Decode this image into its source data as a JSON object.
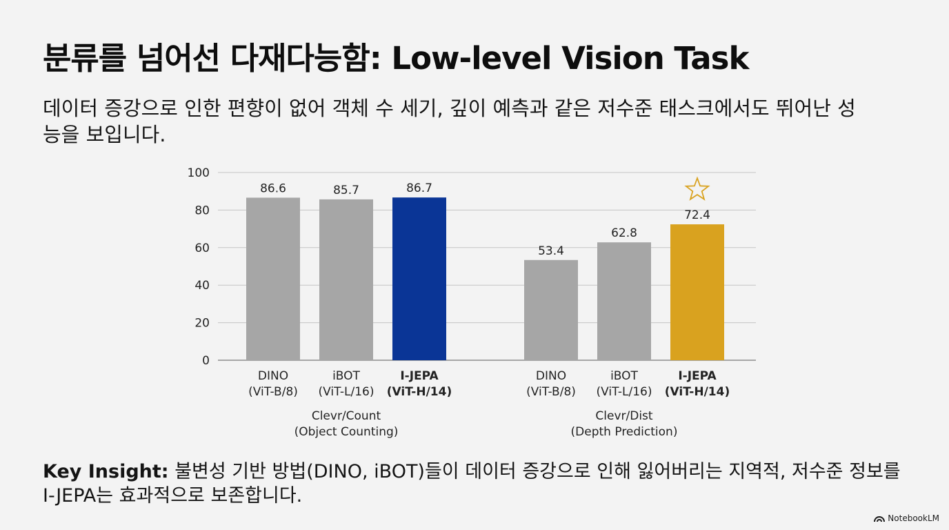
{
  "title": "분류를 넘어선 다재다능함: Low-level Vision Task",
  "subtitle": "데이터 증강으로 인한 편향이 없어 객체 수 세기, 깊이 예측과 같은 저수준 태스크에서도 뛰어난 성능을 보입니다.",
  "insight": {
    "label": "Key Insight:",
    "text": " 불변성 기반 방법(DINO, iBOT)들이 데이터 증강으로 인해 잃어버리는 지역적, 저수준 정보를 I-JEPA는 효과적으로 보존합니다."
  },
  "watermark": "NotebookLM",
  "chart_data": {
    "type": "bar",
    "ylim": [
      0,
      100
    ],
    "yticks": [
      0,
      20,
      40,
      60,
      80,
      100
    ],
    "grid": true,
    "groups": [
      {
        "name": "Clevr/Count",
        "subtitle": "(Object Counting)",
        "bars": [
          {
            "model": "DINO",
            "arch": "(ViT-B/8)",
            "value": 86.6,
            "color": "#a6a6a6",
            "bold": false,
            "star": false
          },
          {
            "model": "iBOT",
            "arch": "(ViT-L/16)",
            "value": 85.7,
            "color": "#a6a6a6",
            "bold": false,
            "star": false
          },
          {
            "model": "I-JEPA",
            "arch": "(ViT-H/14)",
            "value": 86.7,
            "color": "#0a3596",
            "bold": true,
            "star": false
          }
        ]
      },
      {
        "name": "Clevr/Dist",
        "subtitle": "(Depth Prediction)",
        "bars": [
          {
            "model": "DINO",
            "arch": "(ViT-B/8)",
            "value": 53.4,
            "color": "#a6a6a6",
            "bold": false,
            "star": false
          },
          {
            "model": "iBOT",
            "arch": "(ViT-L/16)",
            "value": 62.8,
            "color": "#a6a6a6",
            "bold": false,
            "star": false
          },
          {
            "model": "I-JEPA",
            "arch": "(ViT-H/14)",
            "value": 72.4,
            "color": "#d9a21f",
            "bold": true,
            "star": true
          }
        ]
      }
    ]
  }
}
